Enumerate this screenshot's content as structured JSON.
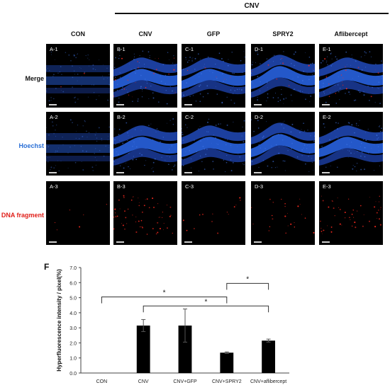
{
  "figure": {
    "group_header": "CNV",
    "columns": [
      "CON",
      "CNV",
      "GFP",
      "SPRY2",
      "Aflibercept"
    ],
    "rows": [
      {
        "label": "Merge",
        "color": "#111111",
        "panels": [
          "A-1",
          "B-1",
          "C-1",
          "D-1",
          "E-1"
        ]
      },
      {
        "label": "Hoechst",
        "color": "#2a6fd6",
        "panels": [
          "A-2",
          "B-2",
          "C-2",
          "D-2",
          "E-2"
        ]
      },
      {
        "label": "DNA fragment",
        "color": "#e0201a",
        "panels": [
          "A-3",
          "B-3",
          "C-3",
          "D-3",
          "E-3"
        ]
      }
    ]
  },
  "panel_f_label": "F",
  "chart_data": {
    "type": "bar",
    "title": "",
    "ylabel": "Hyperfluorescence intensity / pixel(%)",
    "xlabel": "",
    "categories": [
      "CON",
      "CNV",
      "CNV+GFP",
      "CNV+SPRY2",
      "CNV+aflibercept"
    ],
    "values": [
      0,
      3.15,
      3.15,
      1.35,
      2.15
    ],
    "errors": [
      0,
      0.4,
      1.1,
      0.05,
      0.1
    ],
    "ylim": [
      0,
      7
    ],
    "yticks": [
      "0.0",
      "1.0",
      "2.0",
      "3.0",
      "4.0",
      "5.0",
      "6.0",
      "7.0"
    ],
    "bar_color": "#000000",
    "significance": [
      {
        "from": "CON",
        "to": "CNV+SPRY2",
        "label": "*"
      },
      {
        "from": "CNV",
        "to": "CNV+aflibercept",
        "label": "*"
      },
      {
        "from": "CNV+SPRY2",
        "to": "CNV+aflibercept",
        "label": "*"
      }
    ]
  }
}
